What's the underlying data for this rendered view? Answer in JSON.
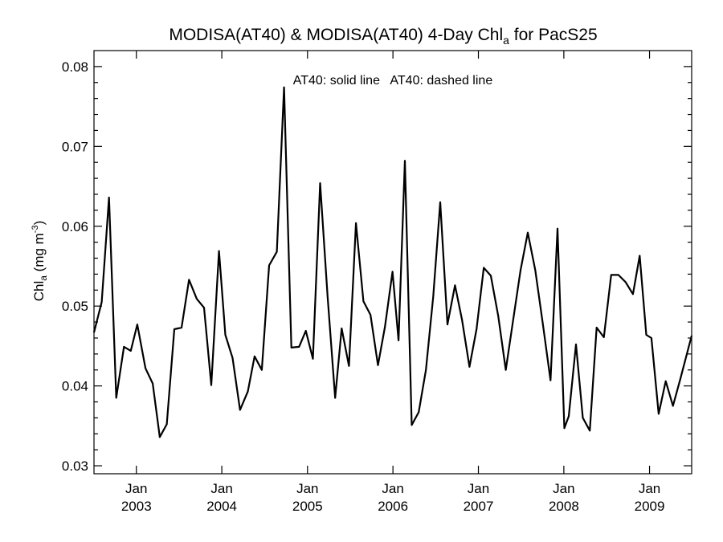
{
  "chart_data": {
    "type": "line",
    "title": "MODISA(AT40) & MODISA(AT40) 4-Day Chl",
    "title_subscript": "a",
    "title_suffix": " for PacS25",
    "ylabel": "Chl",
    "ylabel_subscript": "a",
    "ylabel_units": " (mg m",
    "ylabel_units_sup": "-3",
    "ylabel_units_close": ")",
    "annotation": "AT40: solid line   AT40: dashed line",
    "xlim": [
      "2002-07-04",
      "2009-06-30"
    ],
    "ylim": [
      0.029,
      0.082
    ],
    "yticks": [
      0.03,
      0.04,
      0.05,
      0.06,
      0.07,
      0.08
    ],
    "ytick_labels": [
      "0.03",
      "0.04",
      "0.05",
      "0.06",
      "0.07",
      "0.08"
    ],
    "xticks": [
      {
        "date": "2003-01-01",
        "month": "Jan",
        "year": "2003"
      },
      {
        "date": "2004-01-01",
        "month": "Jan",
        "year": "2004"
      },
      {
        "date": "2005-01-01",
        "month": "Jan",
        "year": "2005"
      },
      {
        "date": "2006-01-01",
        "month": "Jan",
        "year": "2006"
      },
      {
        "date": "2007-01-01",
        "month": "Jan",
        "year": "2007"
      },
      {
        "date": "2008-01-01",
        "month": "Jan",
        "year": "2008"
      },
      {
        "date": "2009-01-01",
        "month": "Jan",
        "year": "2009"
      }
    ],
    "series": [
      {
        "style": "solid",
        "x": [
          "2002-07-04",
          "2002-08-06",
          "2002-09-06",
          "2002-10-07",
          "2002-11-09",
          "2002-12-08",
          "2003-01-05",
          "2003-02-09",
          "2003-03-12",
          "2003-04-11",
          "2003-05-11",
          "2003-06-12",
          "2003-07-13",
          "2003-08-14",
          "2003-09-16",
          "2003-10-17",
          "2003-11-17",
          "2003-12-20",
          "2004-01-16",
          "2004-02-16",
          "2004-03-19",
          "2004-04-21",
          "2004-05-20",
          "2004-06-20",
          "2004-07-21",
          "2004-08-23",
          "2004-09-23",
          "2004-10-24",
          "2004-11-26",
          "2004-12-25",
          "2005-01-24",
          "2005-02-24",
          "2005-03-28",
          "2005-04-29",
          "2005-05-27",
          "2005-06-27",
          "2005-07-27",
          "2005-08-28",
          "2005-09-27",
          "2005-10-29",
          "2005-11-28",
          "2005-12-30",
          "2006-01-25",
          "2006-02-21",
          "2006-03-22",
          "2006-04-21",
          "2006-05-22",
          "2006-06-22",
          "2006-07-22",
          "2006-08-22",
          "2006-09-23",
          "2006-10-23",
          "2006-11-24",
          "2006-12-24",
          "2007-01-24",
          "2007-02-23",
          "2007-03-27",
          "2007-04-28",
          "2007-05-28",
          "2007-06-30",
          "2007-07-31",
          "2007-09-01",
          "2007-10-03",
          "2007-11-05",
          "2007-12-05",
          "2008-01-03",
          "2008-01-22",
          "2008-02-22",
          "2008-03-22",
          "2008-04-21",
          "2008-05-20",
          "2008-06-20",
          "2008-07-21",
          "2008-08-21",
          "2008-09-21",
          "2008-10-22",
          "2008-11-20",
          "2008-12-18",
          "2009-01-09",
          "2009-02-09",
          "2009-03-11",
          "2009-04-11",
          "2009-05-12",
          "2009-06-30"
        ],
        "y": [
          0.0467,
          0.0505,
          0.0636,
          0.0385,
          0.0449,
          0.0444,
          0.0477,
          0.0422,
          0.0403,
          0.0336,
          0.0352,
          0.0471,
          0.0473,
          0.0533,
          0.0509,
          0.0498,
          0.0401,
          0.0569,
          0.0464,
          0.0435,
          0.037,
          0.0393,
          0.0437,
          0.042,
          0.0551,
          0.0568,
          0.0774,
          0.0448,
          0.0449,
          0.0469,
          0.0434,
          0.0654,
          0.0512,
          0.0385,
          0.0472,
          0.0425,
          0.0604,
          0.0506,
          0.0489,
          0.0426,
          0.0474,
          0.0543,
          0.0457,
          0.0682,
          0.0351,
          0.0367,
          0.042,
          0.0512,
          0.063,
          0.0477,
          0.0526,
          0.0483,
          0.0424,
          0.0471,
          0.0548,
          0.0538,
          0.0487,
          0.042,
          0.048,
          0.0545,
          0.0592,
          0.0545,
          0.0478,
          0.0407,
          0.0597,
          0.0347,
          0.0362,
          0.0452,
          0.036,
          0.0344,
          0.0473,
          0.0461,
          0.0539,
          0.0539,
          0.053,
          0.0515,
          0.0563,
          0.0464,
          0.046,
          0.0365,
          0.0406,
          0.0375,
          0.0408,
          0.0463
        ]
      }
    ],
    "grid": false,
    "legend": "none"
  }
}
